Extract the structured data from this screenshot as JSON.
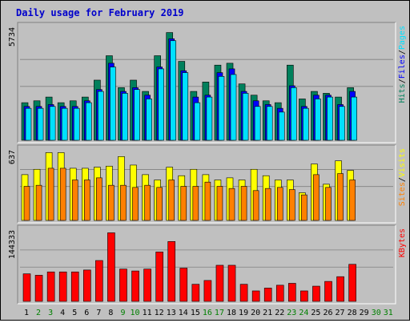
{
  "chart_data": {
    "title": "Daily usage for February 2019",
    "x_labels": [
      "1",
      "2",
      "3",
      "4",
      "5",
      "6",
      "7",
      "8",
      "9",
      "10",
      "11",
      "12",
      "13",
      "14",
      "15",
      "16",
      "17",
      "18",
      "19",
      "20",
      "21",
      "22",
      "23",
      "24",
      "25",
      "26",
      "27",
      "28",
      "29",
      "30",
      "31"
    ],
    "weekend_days": [
      2,
      3,
      9,
      10,
      16,
      17,
      23,
      24,
      30,
      31
    ],
    "colors": {
      "title": "#0000cc",
      "background": "#c0c0c0",
      "hits": "#00805c",
      "files": "#0000ff",
      "pages": "#00e0ff",
      "visits": "#ffff00",
      "sites": "#ff8000",
      "kbytes": "#ff0000",
      "weekday_label": "#000000",
      "weekend_label": "#008000"
    },
    "panels": [
      {
        "type": "bar",
        "max_label": "5734",
        "ymax": 5734,
        "series": [
          {
            "name": "Hits",
            "color": "#00805c",
            "values": [
              2000,
              2100,
              2300,
              2000,
              2100,
              2300,
              3200,
              4500,
              2800,
              3200,
              2600,
              4500,
              5734,
              4200,
              2600,
              3100,
              4000,
              4100,
              3000,
              2400,
              2100,
              2000,
              4000,
              2200,
              2600,
              2500,
              2300,
              2800
            ]
          },
          {
            "name": "Files",
            "color": "#0000ff",
            "values": [
              1800,
              1800,
              1900,
              1800,
              1800,
              2100,
              2700,
              4100,
              2600,
              2800,
              2400,
              3900,
              5400,
              3700,
              2300,
              2400,
              3600,
              3800,
              2600,
              2100,
              1900,
              1700,
              2900,
              1800,
              2400,
              2400,
              1900,
              2600
            ]
          },
          {
            "name": "Pages",
            "color": "#00e0ff",
            "values": [
              1700,
              1700,
              1800,
              1700,
              1700,
              2000,
              2600,
              3900,
              2500,
              2700,
              2200,
              3800,
              5300,
              3600,
              2000,
              2300,
              3400,
              3500,
              2500,
              1800,
              1800,
              1500,
              2800,
              1700,
              2200,
              2300,
              1800,
              2300
            ]
          }
        ],
        "right_labels": [
          {
            "text": "Hits",
            "color": "#00805c"
          },
          {
            "text": "/",
            "color": "#000000"
          },
          {
            "text": "Files",
            "color": "#0000ff"
          },
          {
            "text": "/",
            "color": "#000000"
          },
          {
            "text": "Pages",
            "color": "#00e0ff"
          }
        ]
      },
      {
        "type": "bar",
        "max_label": "637",
        "ymax": 637,
        "series": [
          {
            "name": "Visits",
            "color": "#ffff00",
            "values": [
              430,
              480,
              637,
              637,
              490,
              490,
              500,
              510,
              600,
              520,
              430,
              380,
              500,
              420,
              480,
              430,
              380,
              400,
              380,
              480,
              420,
              380,
              380,
              260,
              530,
              340,
              560,
              470
            ]
          },
          {
            "name": "Sites",
            "color": "#ff8000",
            "values": [
              320,
              330,
              490,
              490,
              380,
              380,
              400,
              330,
              330,
              310,
              330,
              310,
              380,
              320,
              320,
              360,
              320,
              300,
              320,
              280,
              300,
              310,
              290,
              240,
              430,
              310,
              440,
              380
            ]
          }
        ],
        "right_labels": [
          {
            "text": "Sites",
            "color": "#ff8000"
          },
          {
            "text": "/",
            "color": "#000000"
          },
          {
            "text": "Visits",
            "color": "#ffff00"
          }
        ]
      },
      {
        "type": "bar",
        "max_label": "144333",
        "ymax": 144333,
        "series": [
          {
            "name": "KBytes",
            "color": "#ff0000",
            "values": [
              58000,
              55000,
              62000,
              62000,
              62000,
              66000,
              86000,
              144333,
              68000,
              64000,
              68000,
              104000,
              126000,
              70000,
              36000,
              44000,
              76000,
              76000,
              36000,
              22000,
              28000,
              34000,
              38000,
              22000,
              32000,
              42000,
              52000,
              78000
            ]
          }
        ],
        "right_labels": [
          {
            "text": "KBytes",
            "color": "#ff0000"
          }
        ]
      }
    ]
  }
}
